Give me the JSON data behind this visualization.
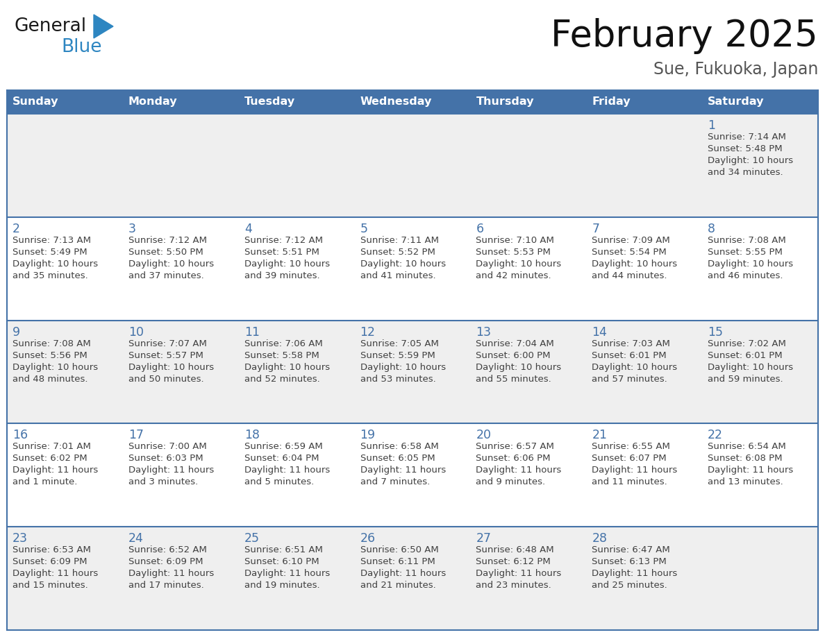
{
  "title": "February 2025",
  "subtitle": "Sue, Fukuoka, Japan",
  "days_of_week": [
    "Sunday",
    "Monday",
    "Tuesday",
    "Wednesday",
    "Thursday",
    "Friday",
    "Saturday"
  ],
  "header_bg": "#4472a8",
  "header_text": "#ffffff",
  "row_bg_even": "#efefef",
  "row_bg_odd": "#ffffff",
  "divider_color": "#4472a8",
  "day_num_color": "#4472a8",
  "text_color": "#404040",
  "logo_general_color": "#1a1a1a",
  "logo_blue_color": "#2e86c1",
  "calendar_data": [
    {
      "day": 1,
      "col": 6,
      "row": 0,
      "sunrise": "7:14 AM",
      "sunset": "5:48 PM",
      "daylight_l1": "Daylight: 10 hours",
      "daylight_l2": "and 34 minutes."
    },
    {
      "day": 2,
      "col": 0,
      "row": 1,
      "sunrise": "7:13 AM",
      "sunset": "5:49 PM",
      "daylight_l1": "Daylight: 10 hours",
      "daylight_l2": "and 35 minutes."
    },
    {
      "day": 3,
      "col": 1,
      "row": 1,
      "sunrise": "7:12 AM",
      "sunset": "5:50 PM",
      "daylight_l1": "Daylight: 10 hours",
      "daylight_l2": "and 37 minutes."
    },
    {
      "day": 4,
      "col": 2,
      "row": 1,
      "sunrise": "7:12 AM",
      "sunset": "5:51 PM",
      "daylight_l1": "Daylight: 10 hours",
      "daylight_l2": "and 39 minutes."
    },
    {
      "day": 5,
      "col": 3,
      "row": 1,
      "sunrise": "7:11 AM",
      "sunset": "5:52 PM",
      "daylight_l1": "Daylight: 10 hours",
      "daylight_l2": "and 41 minutes."
    },
    {
      "day": 6,
      "col": 4,
      "row": 1,
      "sunrise": "7:10 AM",
      "sunset": "5:53 PM",
      "daylight_l1": "Daylight: 10 hours",
      "daylight_l2": "and 42 minutes."
    },
    {
      "day": 7,
      "col": 5,
      "row": 1,
      "sunrise": "7:09 AM",
      "sunset": "5:54 PM",
      "daylight_l1": "Daylight: 10 hours",
      "daylight_l2": "and 44 minutes."
    },
    {
      "day": 8,
      "col": 6,
      "row": 1,
      "sunrise": "7:08 AM",
      "sunset": "5:55 PM",
      "daylight_l1": "Daylight: 10 hours",
      "daylight_l2": "and 46 minutes."
    },
    {
      "day": 9,
      "col": 0,
      "row": 2,
      "sunrise": "7:08 AM",
      "sunset": "5:56 PM",
      "daylight_l1": "Daylight: 10 hours",
      "daylight_l2": "and 48 minutes."
    },
    {
      "day": 10,
      "col": 1,
      "row": 2,
      "sunrise": "7:07 AM",
      "sunset": "5:57 PM",
      "daylight_l1": "Daylight: 10 hours",
      "daylight_l2": "and 50 minutes."
    },
    {
      "day": 11,
      "col": 2,
      "row": 2,
      "sunrise": "7:06 AM",
      "sunset": "5:58 PM",
      "daylight_l1": "Daylight: 10 hours",
      "daylight_l2": "and 52 minutes."
    },
    {
      "day": 12,
      "col": 3,
      "row": 2,
      "sunrise": "7:05 AM",
      "sunset": "5:59 PM",
      "daylight_l1": "Daylight: 10 hours",
      "daylight_l2": "and 53 minutes."
    },
    {
      "day": 13,
      "col": 4,
      "row": 2,
      "sunrise": "7:04 AM",
      "sunset": "6:00 PM",
      "daylight_l1": "Daylight: 10 hours",
      "daylight_l2": "and 55 minutes."
    },
    {
      "day": 14,
      "col": 5,
      "row": 2,
      "sunrise": "7:03 AM",
      "sunset": "6:01 PM",
      "daylight_l1": "Daylight: 10 hours",
      "daylight_l2": "and 57 minutes."
    },
    {
      "day": 15,
      "col": 6,
      "row": 2,
      "sunrise": "7:02 AM",
      "sunset": "6:01 PM",
      "daylight_l1": "Daylight: 10 hours",
      "daylight_l2": "and 59 minutes."
    },
    {
      "day": 16,
      "col": 0,
      "row": 3,
      "sunrise": "7:01 AM",
      "sunset": "6:02 PM",
      "daylight_l1": "Daylight: 11 hours",
      "daylight_l2": "and 1 minute."
    },
    {
      "day": 17,
      "col": 1,
      "row": 3,
      "sunrise": "7:00 AM",
      "sunset": "6:03 PM",
      "daylight_l1": "Daylight: 11 hours",
      "daylight_l2": "and 3 minutes."
    },
    {
      "day": 18,
      "col": 2,
      "row": 3,
      "sunrise": "6:59 AM",
      "sunset": "6:04 PM",
      "daylight_l1": "Daylight: 11 hours",
      "daylight_l2": "and 5 minutes."
    },
    {
      "day": 19,
      "col": 3,
      "row": 3,
      "sunrise": "6:58 AM",
      "sunset": "6:05 PM",
      "daylight_l1": "Daylight: 11 hours",
      "daylight_l2": "and 7 minutes."
    },
    {
      "day": 20,
      "col": 4,
      "row": 3,
      "sunrise": "6:57 AM",
      "sunset": "6:06 PM",
      "daylight_l1": "Daylight: 11 hours",
      "daylight_l2": "and 9 minutes."
    },
    {
      "day": 21,
      "col": 5,
      "row": 3,
      "sunrise": "6:55 AM",
      "sunset": "6:07 PM",
      "daylight_l1": "Daylight: 11 hours",
      "daylight_l2": "and 11 minutes."
    },
    {
      "day": 22,
      "col": 6,
      "row": 3,
      "sunrise": "6:54 AM",
      "sunset": "6:08 PM",
      "daylight_l1": "Daylight: 11 hours",
      "daylight_l2": "and 13 minutes."
    },
    {
      "day": 23,
      "col": 0,
      "row": 4,
      "sunrise": "6:53 AM",
      "sunset": "6:09 PM",
      "daylight_l1": "Daylight: 11 hours",
      "daylight_l2": "and 15 minutes."
    },
    {
      "day": 24,
      "col": 1,
      "row": 4,
      "sunrise": "6:52 AM",
      "sunset": "6:09 PM",
      "daylight_l1": "Daylight: 11 hours",
      "daylight_l2": "and 17 minutes."
    },
    {
      "day": 25,
      "col": 2,
      "row": 4,
      "sunrise": "6:51 AM",
      "sunset": "6:10 PM",
      "daylight_l1": "Daylight: 11 hours",
      "daylight_l2": "and 19 minutes."
    },
    {
      "day": 26,
      "col": 3,
      "row": 4,
      "sunrise": "6:50 AM",
      "sunset": "6:11 PM",
      "daylight_l1": "Daylight: 11 hours",
      "daylight_l2": "and 21 minutes."
    },
    {
      "day": 27,
      "col": 4,
      "row": 4,
      "sunrise": "6:48 AM",
      "sunset": "6:12 PM",
      "daylight_l1": "Daylight: 11 hours",
      "daylight_l2": "and 23 minutes."
    },
    {
      "day": 28,
      "col": 5,
      "row": 4,
      "sunrise": "6:47 AM",
      "sunset": "6:13 PM",
      "daylight_l1": "Daylight: 11 hours",
      "daylight_l2": "and 25 minutes."
    }
  ],
  "num_rows": 5,
  "num_cols": 7,
  "figsize": [
    11.88,
    9.18
  ],
  "dpi": 100
}
